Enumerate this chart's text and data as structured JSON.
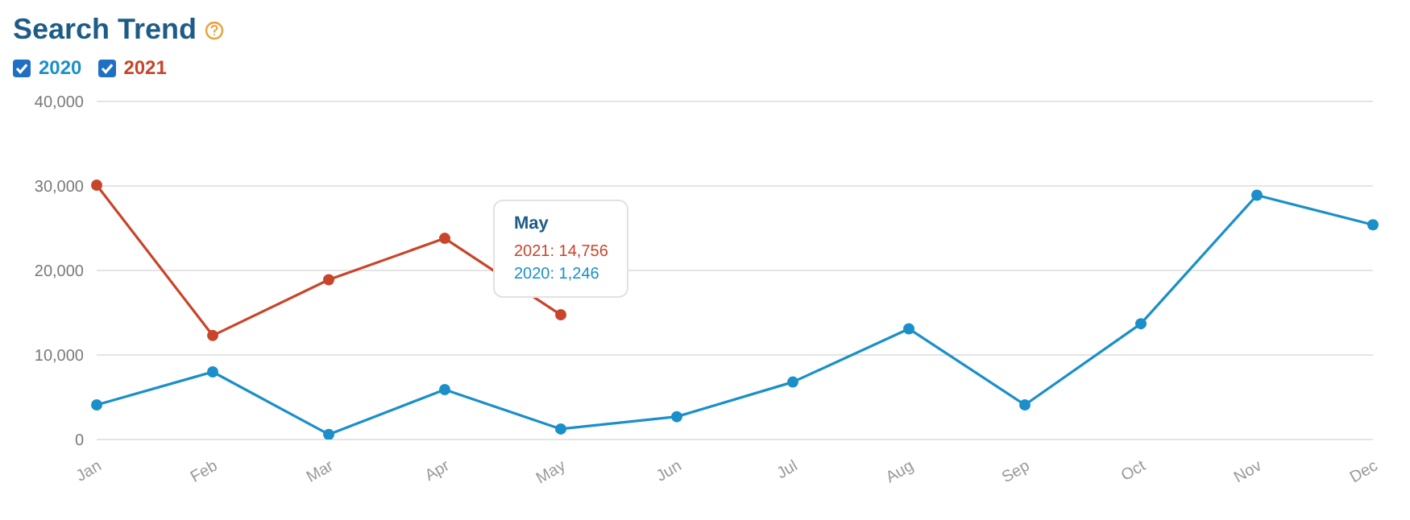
{
  "chart_data": {
    "type": "line",
    "title": "Search Trend",
    "categories": [
      "Jan",
      "Feb",
      "Mar",
      "Apr",
      "May",
      "Jun",
      "Jul",
      "Aug",
      "Sep",
      "Oct",
      "Nov",
      "Dec"
    ],
    "series": [
      {
        "name": "2020",
        "color": "#1a8fc9",
        "values": [
          4100,
          8000,
          600,
          5900,
          1246,
          2700,
          6800,
          13100,
          4100,
          13700,
          28900,
          25400
        ]
      },
      {
        "name": "2021",
        "color": "#c8452a",
        "values": [
          30100,
          12300,
          18900,
          23800,
          14756,
          null,
          null,
          null,
          null,
          null,
          null,
          null
        ]
      }
    ],
    "ylim": [
      0,
      40000
    ],
    "yticks": [
      0,
      {
        "value": 10000,
        "label": "10,000"
      },
      {
        "value": 20000,
        "label": "20,000"
      },
      {
        "value": 30000,
        "label": "30,000"
      },
      {
        "value": 40000,
        "label": "40,000"
      }
    ],
    "grid": "y",
    "legend": "top left",
    "marker": "circle",
    "line_style": "solid",
    "annotations": [
      "May",
      "2021: 14,756",
      "2020: 1,246"
    ]
  }
}
